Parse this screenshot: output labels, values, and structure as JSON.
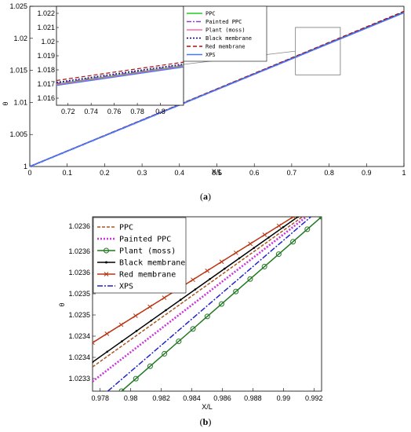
{
  "chart_data": [
    {
      "type": "line",
      "caption_open": "(",
      "caption_letter": "a",
      "caption_close": ")",
      "xlabel": "X/L",
      "ylabel": "θ",
      "xlim": [
        0,
        1
      ],
      "ylim": [
        1,
        1.025
      ],
      "xticks": [
        "0",
        "0.1",
        "0.2",
        "0.3",
        "0.4",
        "0.5",
        "0.6",
        "0.7",
        "0.8",
        "0.9",
        "1"
      ],
      "yticks": [
        "1",
        "1.005",
        "1.01",
        "1.015",
        "1.02",
        "1.025"
      ],
      "grid": false,
      "series": [
        {
          "name": "PPC",
          "color": "#22cc22",
          "dash": "",
          "x": [
            0,
            1
          ],
          "y": [
            1,
            1.0241
          ]
        },
        {
          "name": "Painted PPC",
          "color": "#8844cc",
          "dash": "6 2 2 2",
          "x": [
            0,
            1
          ],
          "y": [
            1,
            1.0241
          ]
        },
        {
          "name": "Plant (moss)",
          "color": "#ff66aa",
          "dash": "",
          "x": [
            0,
            1
          ],
          "y": [
            1,
            1.024
          ]
        },
        {
          "name": "Black membrane",
          "color": "#000066",
          "dash": "2 2",
          "x": [
            0,
            1
          ],
          "y": [
            1,
            1.0241
          ]
        },
        {
          "name": "Red membrane",
          "color": "#aa1111",
          "dash": "5 3",
          "x": [
            0,
            1
          ],
          "y": [
            1,
            1.0242
          ]
        },
        {
          "name": "XPS",
          "color": "#4477ff",
          "dash": "",
          "x": [
            0,
            1
          ],
          "y": [
            1,
            1.024
          ]
        }
      ],
      "inset": {
        "xlim": [
          0.71,
          0.82
        ],
        "ylim": [
          1.0155,
          1.0225
        ],
        "xticks": [
          "0.72",
          "0.74",
          "0.76",
          "0.78",
          "0.8"
        ],
        "yticks": [
          "1.016",
          "1.017",
          "1.018",
          "1.019",
          "1.02",
          "1.021",
          "1.022"
        ],
        "x": [
          0.71,
          0.82
        ],
        "lines_y": [
          [
            1.017,
            1.0183
          ],
          [
            1.01705,
            1.01835
          ],
          [
            1.01695,
            1.01825
          ],
          [
            1.01712,
            1.01842
          ],
          [
            1.01725,
            1.01855
          ],
          [
            1.0169,
            1.0182
          ]
        ],
        "zoom_box": {
          "x": [
            0.71,
            0.83
          ],
          "y": [
            1.0143,
            1.0217
          ]
        }
      },
      "legend_placement": "inside-top-left"
    },
    {
      "type": "line",
      "caption_open": "(",
      "caption_letter": "b",
      "caption_close": ")",
      "xlabel": "X/L",
      "ylabel": "θ",
      "xlim": [
        0.9775,
        0.9925
      ],
      "ylim": [
        1.02326,
        1.02362
      ],
      "xticks": [
        "0.978",
        "0.98",
        "0.982",
        "0.984",
        "0.986",
        "0.988",
        "0.99",
        "0.992"
      ],
      "yticks": [
        "1.0233",
        "1.0234",
        "1.0234",
        "1.0235",
        "1.0235",
        "1.0236",
        "1.0236",
        "1.0236"
      ],
      "grid": false,
      "series": [
        {
          "name": "PPC",
          "color": "#aa5522",
          "dash": "4 2",
          "marker": "none",
          "x": [
            0.9775,
            0.99125
          ],
          "y": [
            1.02331,
            1.02362
          ]
        },
        {
          "name": "Painted PPC",
          "color": "#cc33dd",
          "dash": "2 2",
          "marker": "none",
          "x": [
            0.9775,
            0.9915
          ],
          "y": [
            1.02328,
            1.02362
          ]
        },
        {
          "name": "Plant (moss)",
          "color": "#227722",
          "dash": "",
          "marker": "circle",
          "x": [
            0.9794,
            0.9925
          ],
          "y": [
            1.02326,
            1.02362
          ]
        },
        {
          "name": "Black membrane",
          "color": "#000000",
          "dash": "",
          "marker": "dot",
          "x": [
            0.9775,
            0.99095
          ],
          "y": [
            1.02332,
            1.02362
          ]
        },
        {
          "name": "Red membrane",
          "color": "#bb3311",
          "dash": "",
          "marker": "x",
          "x": [
            0.9775,
            0.99065
          ],
          "y": [
            1.02336,
            1.02362
          ]
        },
        {
          "name": "XPS",
          "color": "#2222cc",
          "dash": "7 2 2 2",
          "marker": "none",
          "x": [
            0.9785,
            0.9918
          ],
          "y": [
            1.02326,
            1.02362
          ]
        }
      ],
      "legend_placement": "top-left"
    }
  ]
}
